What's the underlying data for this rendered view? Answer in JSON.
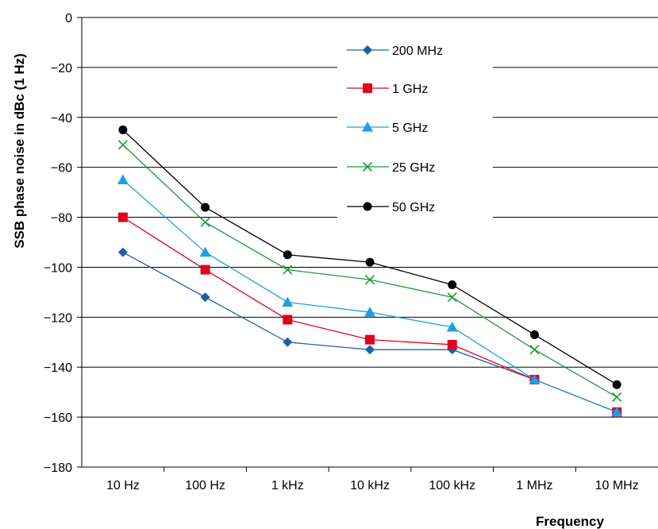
{
  "chart_data": {
    "type": "line",
    "xlabel": "Frequency",
    "ylabel": "SSB phase noise in dBc (1 Hz)",
    "categories": [
      "10 Hz",
      "100 Hz",
      "1 kHz",
      "10 kHz",
      "100 kHz",
      "1 MHz",
      "10 MHz"
    ],
    "ylim": [
      -180,
      0
    ],
    "yticks": [
      0,
      -20,
      -40,
      -60,
      -80,
      -100,
      -120,
      -140,
      -160,
      -180
    ],
    "ytick_labels": [
      "0",
      "−20",
      "−40",
      "−60",
      "−80",
      "−100",
      "−120",
      "−140",
      "−160",
      "−180"
    ],
    "grid": "horizontal",
    "legend_position": "top-right",
    "series": [
      {
        "name": "200 MHz",
        "color": "#1f5fa8",
        "marker": "diamond",
        "values": [
          -94,
          -112,
          -130,
          -133,
          -133,
          -145,
          -158
        ]
      },
      {
        "name": "1 GHz",
        "color": "#e2001a",
        "marker": "square",
        "values": [
          -80,
          -101,
          -121,
          -129,
          -131,
          -145,
          -158
        ]
      },
      {
        "name": "5 GHz",
        "color": "#1ba1e2",
        "marker": "triangle",
        "values": [
          -65,
          -94,
          -114,
          -118,
          -124,
          -145,
          -158
        ]
      },
      {
        "name": "25 GHz",
        "color": "#1e9a3a",
        "marker": "x",
        "values": [
          -51,
          -82,
          -101,
          -105,
          -112,
          -133,
          -152
        ]
      },
      {
        "name": "50 GHz",
        "color": "#000000",
        "marker": "circle",
        "values": [
          -45,
          -76,
          -95,
          -98,
          -107,
          -127,
          -147
        ]
      }
    ]
  }
}
